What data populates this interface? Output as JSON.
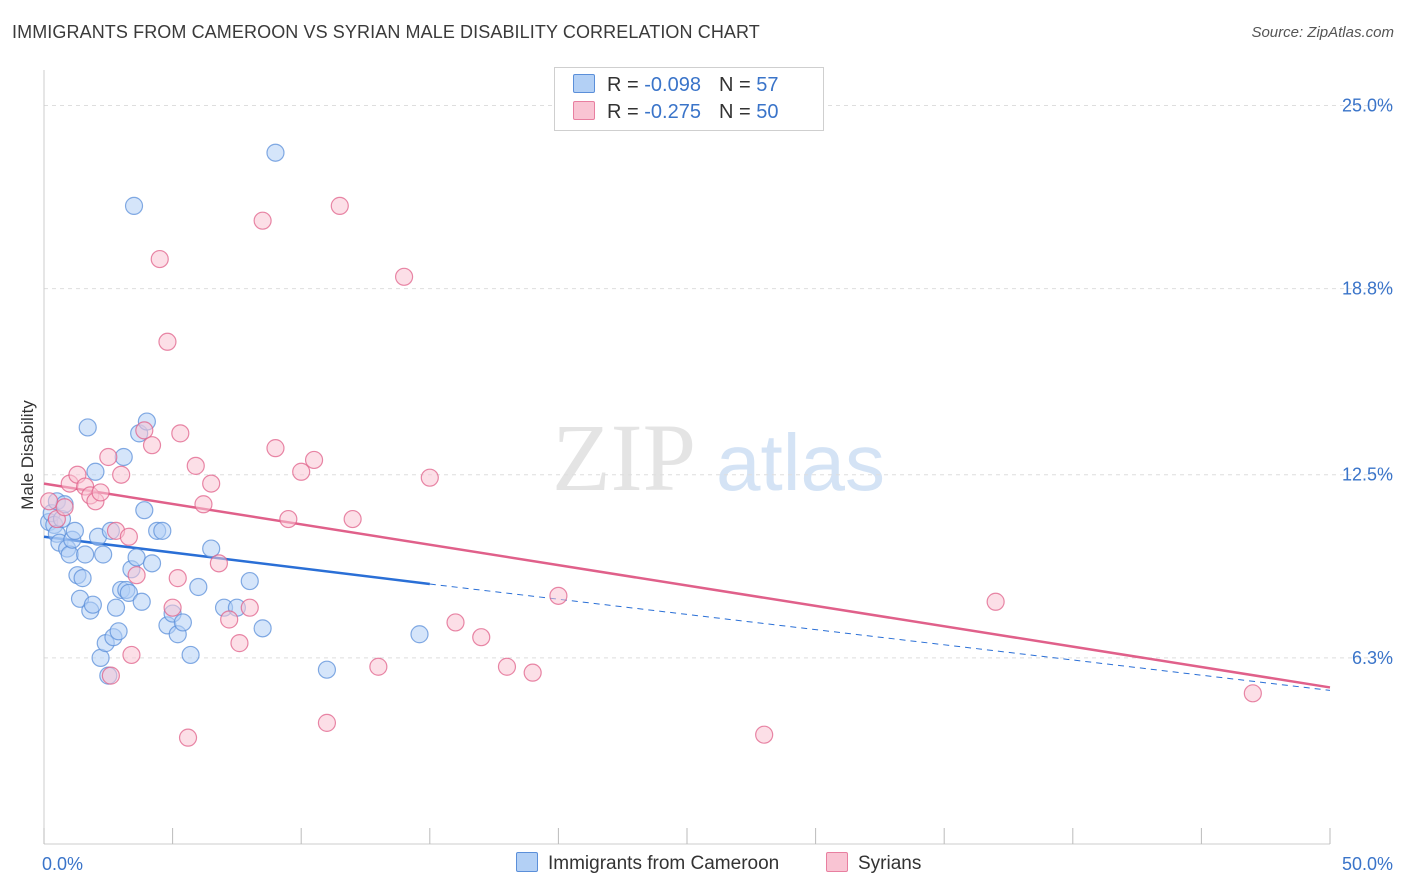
{
  "header": {
    "title": "IMMIGRANTS FROM CAMEROON VS SYRIAN MALE DISABILITY CORRELATION CHART",
    "source": "Source: ZipAtlas.com"
  },
  "watermark": {
    "zip": "ZIP",
    "atlas": "atlas"
  },
  "legend": {
    "rows": [
      {
        "r_label": "R = ",
        "r_value": "-0.098",
        "n_label": "N = ",
        "n_value": "57",
        "fill": "#b3d0f5",
        "stroke": "#5b8fd9"
      },
      {
        "r_label": "R = ",
        "r_value": "-0.275",
        "n_label": "N = ",
        "n_value": "50",
        "fill": "#f9c4d3",
        "stroke": "#e87fa0"
      }
    ]
  },
  "bottom_legend": [
    {
      "label": "Immigrants from Cameroon",
      "fill": "#b3d0f5",
      "stroke": "#5b8fd9"
    },
    {
      "label": "Syrians",
      "fill": "#f9c4d3",
      "stroke": "#e87fa0"
    }
  ],
  "chart_data": {
    "type": "scatter",
    "title": "IMMIGRANTS FROM CAMEROON VS SYRIAN MALE DISABILITY CORRELATION CHART",
    "xlabel": "",
    "ylabel": "Male Disability",
    "xlim": [
      0,
      50
    ],
    "ylim": [
      0,
      26.2
    ],
    "x_tick_labels": [
      {
        "value": 0,
        "label": "0.0%"
      },
      {
        "value": 50,
        "label": "50.0%"
      }
    ],
    "y_ticks": [
      {
        "value": 6.3,
        "label": "6.3%"
      },
      {
        "value": 12.5,
        "label": "12.5%"
      },
      {
        "value": 18.8,
        "label": "18.8%"
      },
      {
        "value": 25.0,
        "label": "25.0%"
      }
    ],
    "grid": "horizontal dashed",
    "legend_position": "top-center",
    "series": [
      {
        "name": "Immigrants from Cameroon",
        "color": "#5b8fd9",
        "fill": "#b3d0f5",
        "r": -0.098,
        "n": 57,
        "trend": {
          "x": [
            0,
            15
          ],
          "y": [
            10.4,
            8.8
          ],
          "dashed_extension_to": [
            50,
            5.2
          ]
        },
        "x": [
          0.2,
          0.3,
          0.4,
          0.5,
          0.5,
          0.6,
          0.7,
          0.8,
          0.9,
          1.0,
          1.1,
          1.2,
          1.3,
          1.4,
          1.5,
          1.6,
          1.7,
          1.8,
          1.9,
          2.0,
          2.1,
          2.2,
          2.3,
          2.4,
          2.5,
          2.6,
          2.7,
          2.8,
          2.9,
          3.0,
          3.1,
          3.2,
          3.3,
          3.4,
          3.5,
          3.6,
          3.7,
          3.8,
          3.9,
          4.0,
          4.2,
          4.4,
          4.6,
          4.8,
          5.0,
          5.2,
          5.4,
          5.7,
          6.0,
          6.5,
          7.0,
          7.5,
          8.0,
          8.5,
          9.0,
          11.0,
          14.6
        ],
        "y": [
          10.9,
          11.2,
          10.8,
          11.6,
          10.5,
          10.2,
          11.0,
          11.5,
          10.0,
          9.8,
          10.3,
          10.6,
          9.1,
          8.3,
          9.0,
          9.8,
          14.1,
          7.9,
          8.1,
          12.6,
          10.4,
          6.3,
          9.8,
          6.8,
          5.7,
          10.6,
          7.0,
          8.0,
          7.2,
          8.6,
          13.1,
          8.6,
          8.5,
          9.3,
          21.6,
          9.7,
          13.9,
          8.2,
          11.3,
          14.3,
          9.5,
          10.6,
          10.6,
          7.4,
          7.8,
          7.1,
          7.5,
          6.4,
          8.7,
          10.0,
          8.0,
          8.0,
          8.9,
          7.3,
          23.4,
          5.9,
          7.1
        ]
      },
      {
        "name": "Syrians",
        "color": "#e0608a",
        "fill": "#f9c4d3",
        "r": -0.275,
        "n": 50,
        "trend": {
          "x": [
            0,
            50
          ],
          "y": [
            12.2,
            5.3
          ]
        },
        "x": [
          0.2,
          0.5,
          0.8,
          1.0,
          1.3,
          1.6,
          1.8,
          2.0,
          2.2,
          2.5,
          2.8,
          3.0,
          3.3,
          3.6,
          3.9,
          4.2,
          4.5,
          4.8,
          5.0,
          5.3,
          5.6,
          5.9,
          6.2,
          6.5,
          6.8,
          7.2,
          7.6,
          8.0,
          8.5,
          9.0,
          9.5,
          10.0,
          10.5,
          11.0,
          11.5,
          12.0,
          13.0,
          14.0,
          15.0,
          16.0,
          17.0,
          18.0,
          19.0,
          20.0,
          28.0,
          37.0,
          47.0,
          2.6,
          3.4,
          5.2
        ],
        "y": [
          11.6,
          11.0,
          11.4,
          12.2,
          12.5,
          12.1,
          11.8,
          11.6,
          11.9,
          13.1,
          10.6,
          12.5,
          10.4,
          9.1,
          14.0,
          13.5,
          19.8,
          17.0,
          8.0,
          13.9,
          3.6,
          12.8,
          11.5,
          12.2,
          9.5,
          7.6,
          6.8,
          8.0,
          21.1,
          13.4,
          11.0,
          12.6,
          13.0,
          4.1,
          21.6,
          11.0,
          6.0,
          19.2,
          12.4,
          7.5,
          7.0,
          6.0,
          5.8,
          8.4,
          3.7,
          8.2,
          5.1,
          5.7,
          6.4,
          9.0
        ]
      }
    ]
  }
}
